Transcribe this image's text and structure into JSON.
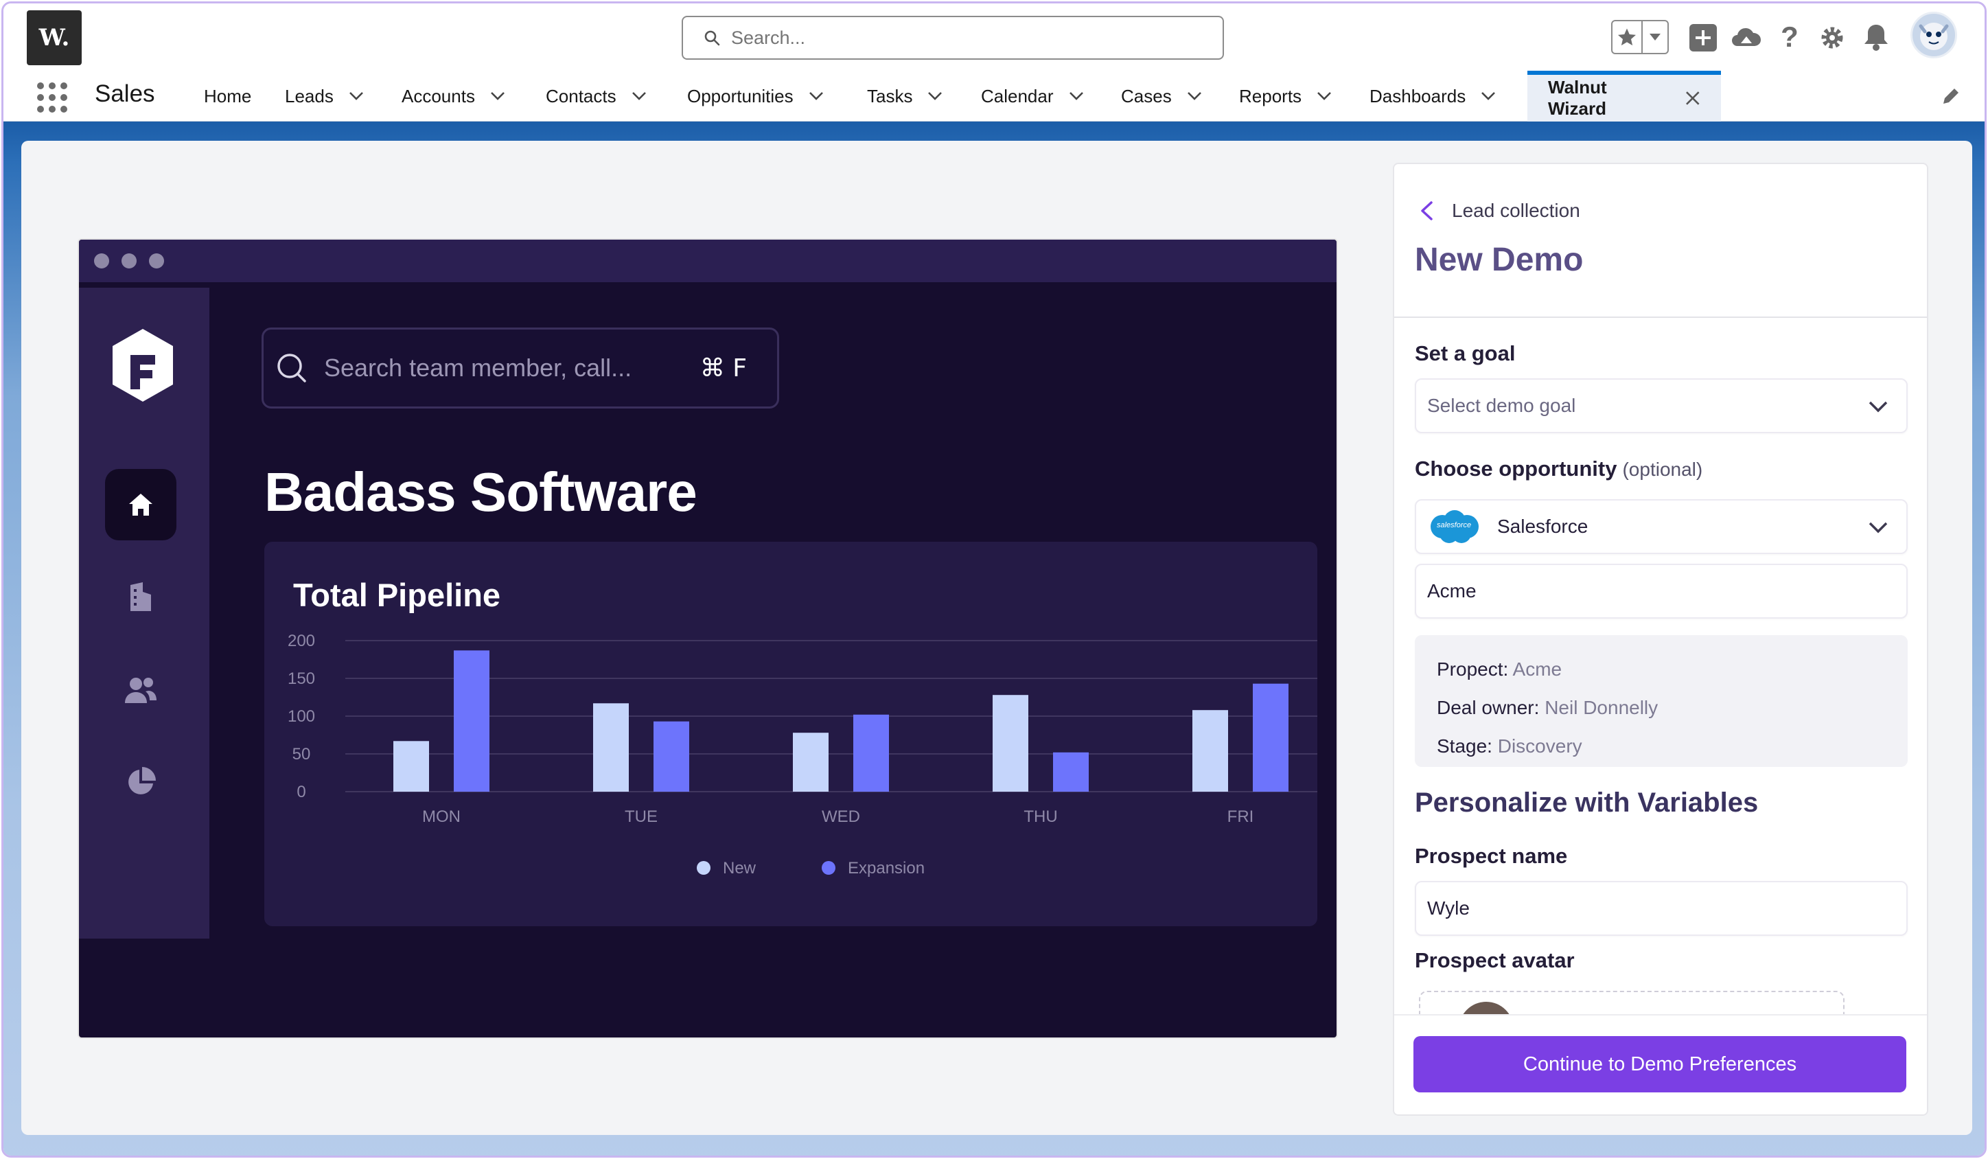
{
  "global_header": {
    "logo_text": "W.",
    "search_placeholder": "Search..."
  },
  "nav": {
    "app_name": "Sales",
    "items": [
      {
        "label": "Home",
        "has_menu": false
      },
      {
        "label": "Leads",
        "has_menu": true
      },
      {
        "label": "Accounts",
        "has_menu": true
      },
      {
        "label": "Contacts",
        "has_menu": true
      },
      {
        "label": "Opportunities",
        "has_menu": true
      },
      {
        "label": "Tasks",
        "has_menu": true
      },
      {
        "label": "Calendar",
        "has_menu": true
      },
      {
        "label": "Cases",
        "has_menu": true
      },
      {
        "label": "Reports",
        "has_menu": true
      },
      {
        "label": "Dashboards",
        "has_menu": true
      }
    ],
    "active_tab": "Walnut Wizard"
  },
  "preview": {
    "search_placeholder": "Search team member, call...",
    "search_shortcut": "⌘ F",
    "company_name": "Badass Software",
    "chart_title": "Total Pipeline"
  },
  "chart_data": {
    "type": "bar",
    "title": "Total Pipeline",
    "categories": [
      "MON",
      "TUE",
      "WED",
      "THU",
      "FRI"
    ],
    "series": [
      {
        "name": "New",
        "values": [
          67,
          117,
          78,
          128,
          108
        ],
        "color": "#c5d5fb"
      },
      {
        "name": "Expansion",
        "values": [
          187,
          93,
          102,
          52,
          143
        ],
        "color": "#6d74fc"
      }
    ],
    "yticks": [
      0,
      50,
      100,
      150,
      200
    ],
    "ylim": [
      0,
      200
    ],
    "grid": true,
    "legend_position": "bottom"
  },
  "wizard": {
    "breadcrumb": "Lead collection",
    "title": "New Demo",
    "goal_label": "Set a goal",
    "goal_placeholder": "Select demo goal",
    "opportunity_label": "Choose opportunity",
    "opportunity_optional": "(optional)",
    "opportunity_source": "Salesforce",
    "opportunity_source_logo_text": "salesforce",
    "opportunity_value": "Acme",
    "details": [
      {
        "key": "Propect:",
        "value": "Acme"
      },
      {
        "key": "Deal owner:",
        "value": "Neil Donnelly"
      },
      {
        "key": "Stage:",
        "value": "Discovery"
      }
    ],
    "variables_title": "Personalize with Variables",
    "prospect_name_label": "Prospect name",
    "prospect_name_value": "Wyle",
    "prospect_avatar_label": "Prospect avatar",
    "cta_label": "Continue to Demo Preferences"
  },
  "colors": {
    "brand_accent": "#7b3fe4",
    "salesforce_blue": "#0176d3",
    "preview_bg": "#160d2e"
  }
}
